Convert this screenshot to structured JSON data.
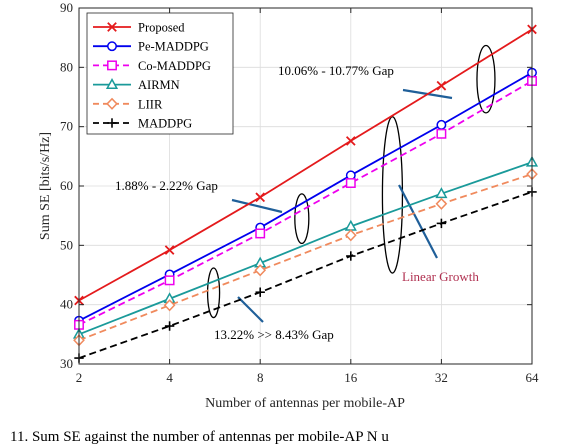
{
  "chart_data": {
    "type": "line",
    "xlabel": "Number of antennas per mobile-AP",
    "ylabel": "Sum SE [bits/s/Hz]",
    "x": [
      2,
      4,
      8,
      16,
      32,
      64
    ],
    "x_scale": "log2",
    "xticks": [
      "2",
      "4",
      "8",
      "16",
      "32",
      "64"
    ],
    "ylim": [
      30,
      90
    ],
    "yticks": [
      30,
      40,
      50,
      60,
      70,
      80,
      90
    ],
    "grid": true,
    "legend_position": "top-left",
    "series": [
      {
        "name": "Proposed",
        "values": [
          40.7,
          49.2,
          58.1,
          67.6,
          76.9,
          86.4
        ],
        "color": "#e41a1c",
        "marker": "x",
        "dash": "solid"
      },
      {
        "name": "Pe-MADDPG",
        "values": [
          37.3,
          45.1,
          53.0,
          61.8,
          70.3,
          79.1
        ],
        "color": "#0000ee",
        "marker": "circle",
        "dash": "solid"
      },
      {
        "name": "Co-MADDPG",
        "values": [
          36.6,
          44.1,
          52.0,
          60.5,
          68.8,
          77.7
        ],
        "color": "#ee00ee",
        "marker": "square",
        "dash": "dash"
      },
      {
        "name": "AIRMN",
        "values": [
          35.0,
          41.0,
          47.0,
          53.2,
          58.7,
          64.0
        ],
        "color": "#1a9a9a",
        "marker": "triangle",
        "dash": "solid"
      },
      {
        "name": "LIIR",
        "values": [
          34.0,
          39.9,
          45.8,
          51.7,
          57.0,
          62.0
        ],
        "color": "#f08a5d",
        "marker": "diamond",
        "dash": "dash"
      },
      {
        "name": "MADDPG",
        "values": [
          31.0,
          36.4,
          42.1,
          48.2,
          53.7,
          59.0
        ],
        "color": "#000000",
        "marker": "plus",
        "dash": "dash"
      }
    ],
    "annotations": [
      {
        "text": "10.06% - 10.77% Gap",
        "color": "#000000"
      },
      {
        "text": "1.88% - 2.22% Gap",
        "color": "#000000"
      },
      {
        "text": "Linear Growth",
        "color": "#b03050"
      },
      {
        "text": "13.22% >> 8.43% Gap",
        "color": "#000000"
      }
    ]
  },
  "caption": "11.  Sum SE against the number of antennas per mobile-AP N u"
}
